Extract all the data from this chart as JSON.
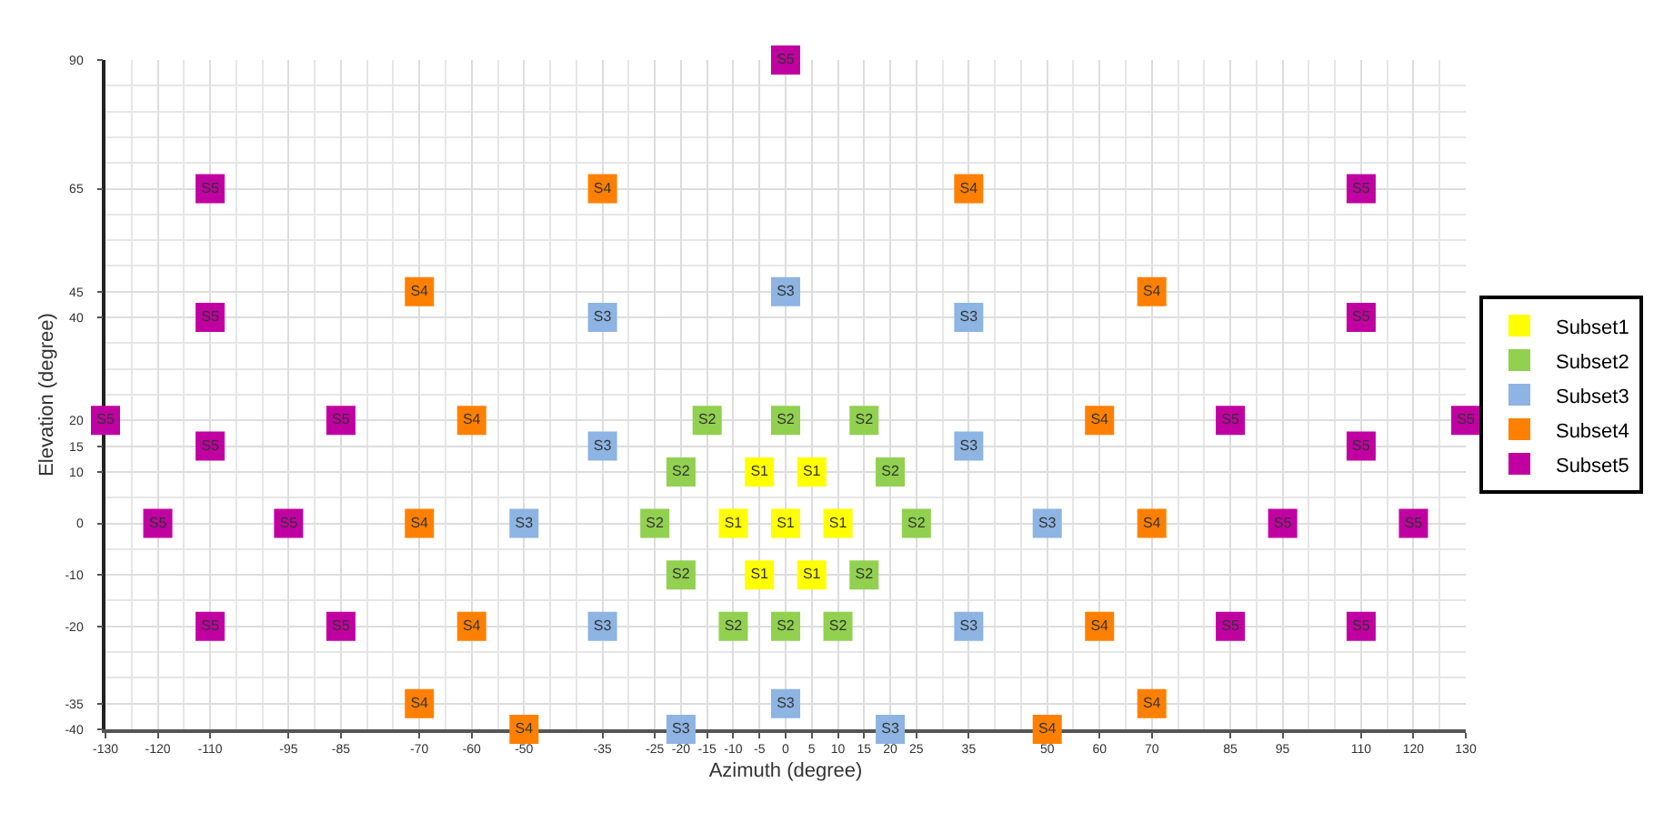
{
  "chart_data": {
    "type": "scatter",
    "xlabel": "Azimuth (degree)",
    "ylabel": "Elevation (degree)",
    "xlim": [
      -130,
      130
    ],
    "ylim": [
      -40,
      90
    ],
    "xticks": [
      -130,
      -120,
      -110,
      -95,
      -85,
      -70,
      -60,
      -50,
      -35,
      -25,
      -20,
      -15,
      -10,
      -5,
      0,
      5,
      10,
      15,
      20,
      25,
      35,
      50,
      60,
      70,
      85,
      95,
      110,
      120,
      130
    ],
    "yticks": [
      -40,
      -35,
      -20,
      -10,
      0,
      10,
      15,
      20,
      40,
      45,
      65,
      90
    ],
    "grid": true,
    "legend": "right",
    "marker": "square",
    "series": [
      {
        "name": "Subset1",
        "color": "#ffff00",
        "x": [
          -5,
          5,
          -10,
          0,
          10,
          -5,
          5
        ],
        "values": [
          10,
          10,
          0,
          0,
          0,
          -10,
          -10
        ],
        "value_labels": [
          "S1",
          "S1",
          "S1",
          "S1",
          "S1",
          "S1",
          "S1"
        ]
      },
      {
        "name": "Subset2",
        "color": "#92d050",
        "x": [
          -15,
          0,
          15,
          -20,
          20,
          -25,
          25,
          -20,
          15,
          -10,
          0,
          10
        ],
        "values": [
          20,
          20,
          20,
          10,
          10,
          0,
          0,
          -10,
          -10,
          -20,
          -20,
          -20
        ],
        "value_labels": [
          "S2",
          "S2",
          "S2",
          "S2",
          "S2",
          "S2",
          "S2",
          "S2",
          "S2",
          "S2",
          "S2",
          "S2"
        ]
      },
      {
        "name": "Subset3",
        "color": "#8db4e2",
        "x": [
          0,
          -35,
          35,
          -35,
          35,
          -50,
          50,
          -35,
          35,
          0,
          -20,
          20
        ],
        "values": [
          45,
          40,
          40,
          15,
          15,
          0,
          0,
          -20,
          -20,
          -35,
          -40,
          -40
        ],
        "value_labels": [
          "S3",
          "S3",
          "S3",
          "S3",
          "S3",
          "S3",
          "S3",
          "S3",
          "S3",
          "S3",
          "S3",
          "S3"
        ]
      },
      {
        "name": "Subset4",
        "color": "#ff8000",
        "x": [
          -35,
          35,
          -70,
          70,
          -60,
          60,
          -70,
          70,
          -60,
          60,
          -70,
          70,
          -50,
          50
        ],
        "values": [
          65,
          65,
          45,
          45,
          20,
          20,
          0,
          0,
          -20,
          -20,
          -35,
          -35,
          -40,
          -40
        ],
        "value_labels": [
          "S4",
          "S4",
          "S4",
          "S4",
          "S4",
          "S4",
          "S4",
          "S4",
          "S4",
          "S4",
          "S4",
          "S4",
          "S4",
          "S4"
        ]
      },
      {
        "name": "Subset5",
        "color": "#c000a0",
        "x": [
          0,
          -110,
          110,
          -110,
          110,
          -130,
          -85,
          85,
          130,
          -110,
          110,
          -120,
          -95,
          95,
          120,
          -110,
          -85,
          85,
          110
        ],
        "values": [
          90,
          65,
          65,
          40,
          40,
          20,
          20,
          20,
          20,
          15,
          15,
          0,
          0,
          0,
          0,
          -20,
          -20,
          -20,
          -20
        ],
        "value_labels": [
          "S5",
          "S5",
          "S5",
          "S5",
          "S5",
          "S5",
          "S5",
          "S5",
          "S5",
          "S5",
          "S5",
          "S5",
          "S5",
          "S5",
          "S5",
          "S5",
          "S5",
          "S5",
          "S5"
        ]
      }
    ]
  }
}
